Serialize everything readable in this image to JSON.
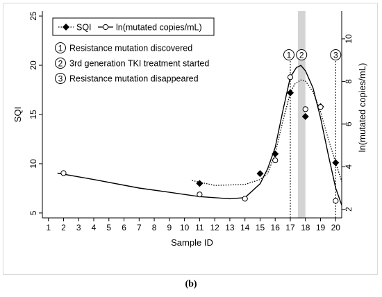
{
  "caption": "(b)",
  "chart_data": {
    "type": "line",
    "xlabel": "Sample ID",
    "ylabel": "SQI",
    "y2label": "ln(mutated copies/mL)",
    "xlim": [
      0.6,
      20.4
    ],
    "ylim": [
      4.5,
      25.5
    ],
    "y2lim": [
      1.6,
      11.3
    ],
    "x_ticks": [
      "1",
      "2",
      "3",
      "4",
      "5",
      "6",
      "7",
      "8",
      "9",
      "10",
      "11",
      "12",
      "13",
      "14",
      "15",
      "16",
      "17",
      "18",
      "19",
      "20"
    ],
    "y_ticks": [
      "5",
      "10",
      "15",
      "20",
      "25"
    ],
    "y2_ticks": [
      "2",
      "4",
      "6",
      "8",
      "10"
    ],
    "grid": false,
    "legend_position": "top-left",
    "legend": [
      {
        "label": "SQI",
        "marker": "diamond-filled",
        "line": "dotted"
      },
      {
        "label": "ln(mutated copies/mL)",
        "marker": "circle-open",
        "line": "solid"
      }
    ],
    "series": [
      {
        "name": "SQI",
        "axis": "left",
        "points": [
          [
            11,
            8.0
          ],
          [
            15,
            9.0
          ],
          [
            16,
            11.0
          ],
          [
            17,
            17.2
          ],
          [
            18,
            14.8
          ],
          [
            19,
            15.8
          ],
          [
            20,
            10.1
          ]
        ],
        "fit": [
          [
            10.5,
            8.3
          ],
          [
            12,
            7.8
          ],
          [
            14,
            7.9
          ],
          [
            15,
            8.4
          ],
          [
            15.5,
            9.0
          ],
          [
            16,
            11.0
          ],
          [
            16.5,
            14.3
          ],
          [
            17,
            17.2
          ],
          [
            17.3,
            18.1
          ],
          [
            17.7,
            18.5
          ],
          [
            18,
            18.4
          ],
          [
            18.5,
            17.3
          ],
          [
            19,
            15.3
          ],
          [
            19.5,
            12.6
          ],
          [
            20,
            10.1
          ],
          [
            20.4,
            8.2
          ]
        ]
      },
      {
        "name": "ln(mutated copies/mL)",
        "axis": "right",
        "points": [
          [
            2,
            3.7
          ],
          [
            11,
            2.7
          ],
          [
            14,
            2.5
          ],
          [
            16,
            4.3
          ],
          [
            17,
            8.2
          ],
          [
            18,
            6.7
          ],
          [
            19,
            6.8
          ],
          [
            20,
            2.4
          ]
        ],
        "fit": [
          [
            1.6,
            3.7
          ],
          [
            4,
            3.4
          ],
          [
            7,
            3.0
          ],
          [
            9,
            2.8
          ],
          [
            11,
            2.6
          ],
          [
            13,
            2.5
          ],
          [
            14,
            2.55
          ],
          [
            15,
            3.2
          ],
          [
            15.5,
            3.9
          ],
          [
            16,
            4.9
          ],
          [
            16.5,
            6.6
          ],
          [
            17,
            8.2
          ],
          [
            17.4,
            8.65
          ],
          [
            17.7,
            8.75
          ],
          [
            18,
            8.5
          ],
          [
            18.5,
            7.7
          ],
          [
            19,
            6.3
          ],
          [
            19.5,
            4.6
          ],
          [
            20,
            3.0
          ],
          [
            20.4,
            2.2
          ]
        ]
      }
    ],
    "events": [
      {
        "label": "1",
        "x": 17,
        "text": "Resistance mutation discovered"
      },
      {
        "label": "2",
        "x": 17.7,
        "text": "3rd generation TKI treatment started"
      },
      {
        "label": "3",
        "x": 20,
        "text": "Resistance mutation disappeared"
      }
    ],
    "shaded_band": {
      "x_from": 17.5,
      "x_to": 18.0,
      "color": "#d3d3d3"
    }
  }
}
